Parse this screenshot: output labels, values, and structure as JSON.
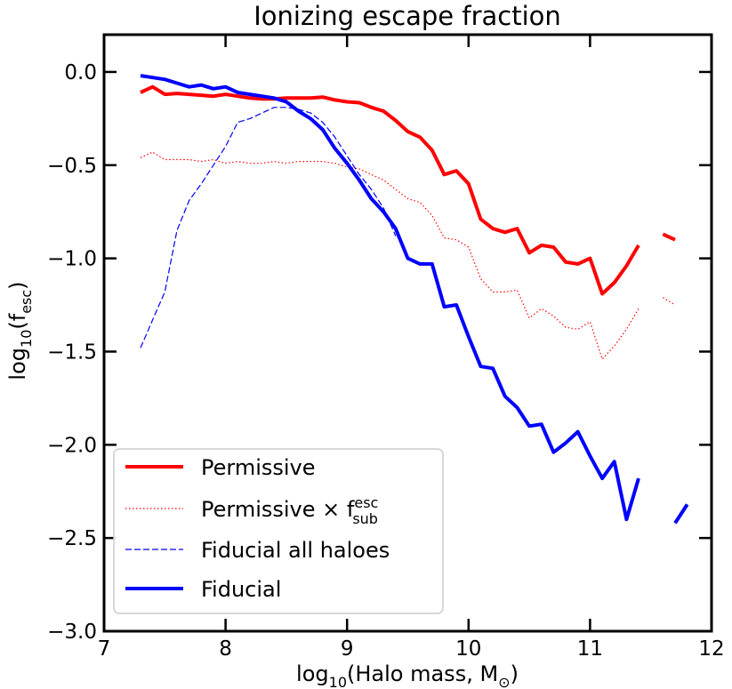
{
  "chart_data": {
    "type": "line",
    "title": "Ionizing escape fraction",
    "xlabel": {
      "main": "log",
      "sub": "10",
      "rest": "(Halo mass, M",
      "sun_sub": "⊙",
      "close": ")"
    },
    "ylabel": {
      "main": "log",
      "sub": "10",
      "rest": "(f",
      "sub2": "esc",
      "close": ")"
    },
    "xlim": [
      7,
      12
    ],
    "ylim": [
      -3.0,
      0.2
    ],
    "xticks": [
      7,
      8,
      9,
      10,
      11,
      12
    ],
    "xtick_labels": [
      "7",
      "8",
      "9",
      "10",
      "11",
      "12"
    ],
    "yticks": [
      -3.0,
      -2.5,
      -2.0,
      -1.5,
      -1.0,
      -0.5,
      0.0
    ],
    "ytick_labels": [
      "−3.0",
      "−2.5",
      "−2.0",
      "−1.5",
      "−1.0",
      "−0.5",
      "0.0"
    ],
    "legend_position": "lower-left",
    "legend": [
      {
        "id": "permissive",
        "label": "Permissive"
      },
      {
        "id": "permissive_sub",
        "label_main": "Permissive × f",
        "label_sup": "esc",
        "label_sub": "sub"
      },
      {
        "id": "fiducial_all",
        "label": "Fiducial all haloes"
      },
      {
        "id": "fiducial",
        "label": "Fiducial"
      }
    ],
    "series": [
      {
        "id": "permissive",
        "name": "Permissive",
        "color": "#ff0000",
        "style": "solid-thick",
        "segments": [
          [
            [
              7.3,
              -0.11
            ],
            [
              7.4,
              -0.08
            ],
            [
              7.5,
              -0.12
            ],
            [
              7.6,
              -0.115
            ],
            [
              7.7,
              -0.12
            ],
            [
              7.8,
              -0.125
            ],
            [
              7.9,
              -0.13
            ],
            [
              8.0,
              -0.12
            ],
            [
              8.1,
              -0.13
            ],
            [
              8.2,
              -0.14
            ],
            [
              8.3,
              -0.145
            ],
            [
              8.4,
              -0.145
            ],
            [
              8.5,
              -0.14
            ],
            [
              8.6,
              -0.14
            ],
            [
              8.7,
              -0.14
            ],
            [
              8.8,
              -0.135
            ],
            [
              8.9,
              -0.15
            ],
            [
              9.0,
              -0.16
            ],
            [
              9.1,
              -0.165
            ],
            [
              9.2,
              -0.19
            ],
            [
              9.3,
              -0.21
            ],
            [
              9.4,
              -0.26
            ],
            [
              9.5,
              -0.32
            ],
            [
              9.6,
              -0.35
            ],
            [
              9.7,
              -0.42
            ],
            [
              9.8,
              -0.55
            ],
            [
              9.9,
              -0.53
            ],
            [
              10.0,
              -0.6
            ],
            [
              10.1,
              -0.79
            ],
            [
              10.2,
              -0.84
            ],
            [
              10.3,
              -0.86
            ],
            [
              10.4,
              -0.84
            ],
            [
              10.5,
              -0.97
            ],
            [
              10.6,
              -0.93
            ],
            [
              10.7,
              -0.94
            ],
            [
              10.8,
              -1.02
            ],
            [
              10.9,
              -1.03
            ],
            [
              11.0,
              -1.0
            ],
            [
              11.1,
              -1.19
            ],
            [
              11.2,
              -1.13
            ],
            [
              11.3,
              -1.04
            ],
            [
              11.4,
              -0.93
            ]
          ],
          [
            [
              11.6,
              -0.87
            ],
            [
              11.7,
              -0.9
            ]
          ]
        ]
      },
      {
        "id": "permissive_sub",
        "name": "Permissive × f_sub^esc",
        "color": "#ff0000",
        "style": "dotted",
        "segments": [
          [
            [
              7.3,
              -0.46
            ],
            [
              7.4,
              -0.43
            ],
            [
              7.5,
              -0.47
            ],
            [
              7.6,
              -0.47
            ],
            [
              7.7,
              -0.47
            ],
            [
              7.8,
              -0.48
            ],
            [
              7.9,
              -0.47
            ],
            [
              8.0,
              -0.49
            ],
            [
              8.1,
              -0.48
            ],
            [
              8.2,
              -0.49
            ],
            [
              8.3,
              -0.49
            ],
            [
              8.4,
              -0.48
            ],
            [
              8.5,
              -0.49
            ],
            [
              8.6,
              -0.48
            ],
            [
              8.7,
              -0.48
            ],
            [
              8.8,
              -0.48
            ],
            [
              8.9,
              -0.49
            ],
            [
              9.0,
              -0.51
            ],
            [
              9.1,
              -0.52
            ],
            [
              9.2,
              -0.55
            ],
            [
              9.3,
              -0.58
            ],
            [
              9.4,
              -0.63
            ],
            [
              9.5,
              -0.68
            ],
            [
              9.6,
              -0.7
            ],
            [
              9.7,
              -0.77
            ],
            [
              9.8,
              -0.89
            ],
            [
              9.9,
              -0.9
            ],
            [
              10.0,
              -0.94
            ],
            [
              10.1,
              -1.11
            ],
            [
              10.2,
              -1.18
            ],
            [
              10.3,
              -1.18
            ],
            [
              10.4,
              -1.17
            ],
            [
              10.5,
              -1.32
            ],
            [
              10.6,
              -1.27
            ],
            [
              10.7,
              -1.31
            ],
            [
              10.8,
              -1.37
            ],
            [
              10.9,
              -1.38
            ],
            [
              11.0,
              -1.34
            ],
            [
              11.1,
              -1.54
            ],
            [
              11.2,
              -1.47
            ],
            [
              11.3,
              -1.38
            ],
            [
              11.4,
              -1.27
            ]
          ],
          [
            [
              11.6,
              -1.21
            ],
            [
              11.7,
              -1.25
            ]
          ]
        ]
      },
      {
        "id": "fiducial_all",
        "name": "Fiducial all haloes",
        "color": "#0000ff",
        "style": "dashed",
        "segments": [
          [
            [
              7.3,
              -1.48
            ],
            [
              7.4,
              -1.33
            ],
            [
              7.5,
              -1.18
            ],
            [
              7.6,
              -0.85
            ],
            [
              7.7,
              -0.69
            ],
            [
              7.8,
              -0.6
            ],
            [
              7.9,
              -0.5
            ],
            [
              8.0,
              -0.4
            ],
            [
              8.1,
              -0.27
            ],
            [
              8.2,
              -0.25
            ],
            [
              8.3,
              -0.22
            ],
            [
              8.4,
              -0.19
            ],
            [
              8.5,
              -0.19
            ],
            [
              8.6,
              -0.2
            ],
            [
              8.7,
              -0.22
            ],
            [
              8.8,
              -0.27
            ],
            [
              8.9,
              -0.35
            ],
            [
              9.0,
              -0.45
            ],
            [
              9.1,
              -0.55
            ],
            [
              9.2,
              -0.63
            ],
            [
              9.3,
              -0.73
            ],
            [
              9.4,
              -0.88
            ]
          ]
        ]
      },
      {
        "id": "fiducial",
        "name": "Fiducial",
        "color": "#0000ff",
        "style": "solid-thick",
        "segments": [
          [
            [
              7.3,
              -0.02
            ],
            [
              7.4,
              -0.03
            ],
            [
              7.5,
              -0.04
            ],
            [
              7.6,
              -0.06
            ],
            [
              7.7,
              -0.08
            ],
            [
              7.8,
              -0.07
            ],
            [
              7.9,
              -0.09
            ],
            [
              8.0,
              -0.08
            ],
            [
              8.1,
              -0.11
            ],
            [
              8.2,
              -0.12
            ],
            [
              8.3,
              -0.13
            ],
            [
              8.4,
              -0.14
            ],
            [
              8.5,
              -0.16
            ],
            [
              8.6,
              -0.21
            ],
            [
              8.7,
              -0.25
            ],
            [
              8.8,
              -0.31
            ],
            [
              8.9,
              -0.41
            ],
            [
              9.0,
              -0.49
            ],
            [
              9.1,
              -0.58
            ],
            [
              9.2,
              -0.68
            ],
            [
              9.3,
              -0.75
            ],
            [
              9.4,
              -0.84
            ],
            [
              9.5,
              -1.0
            ],
            [
              9.6,
              -1.03
            ],
            [
              9.7,
              -1.03
            ],
            [
              9.8,
              -1.26
            ],
            [
              9.9,
              -1.25
            ],
            [
              10.0,
              -1.42
            ],
            [
              10.1,
              -1.58
            ],
            [
              10.2,
              -1.59
            ],
            [
              10.3,
              -1.74
            ],
            [
              10.4,
              -1.8
            ],
            [
              10.5,
              -1.9
            ],
            [
              10.6,
              -1.89
            ],
            [
              10.7,
              -2.04
            ],
            [
              10.8,
              -1.99
            ],
            [
              10.9,
              -1.93
            ],
            [
              11.0,
              -2.06
            ],
            [
              11.1,
              -2.18
            ],
            [
              11.2,
              -2.09
            ],
            [
              11.3,
              -2.4
            ],
            [
              11.4,
              -2.18
            ]
          ],
          [
            [
              11.7,
              -2.42
            ],
            [
              11.8,
              -2.32
            ]
          ]
        ]
      }
    ]
  }
}
